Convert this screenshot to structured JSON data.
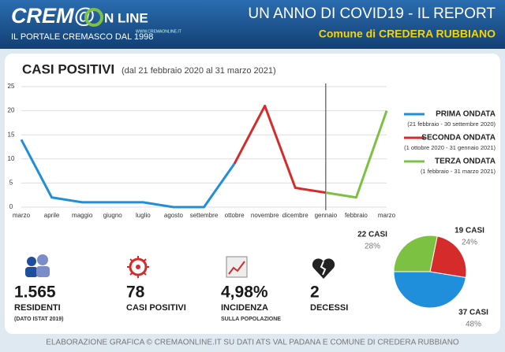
{
  "header": {
    "logo_main": "CREM@",
    "logo_tail": "N LINE",
    "tagline": "IL PORTALE CREMASCO DAL 1998",
    "url": "WWW.CREMAONLINE.IT",
    "title": "UN ANNO DI COVID19 - IL  REPORT",
    "subtitle": "Comune di CREDERA RUBBIANO"
  },
  "chart_data": [
    {
      "type": "line",
      "title": "CASI POSITIVI",
      "subtitle": "(dal 21 febbraio 2020 al 31 marzo 2021)",
      "categories": [
        "marzo",
        "aprile",
        "maggio",
        "giugno",
        "luglio",
        "agosto",
        "settembre",
        "ottobre",
        "novembre",
        "dicembre",
        "gennaio",
        "febbraio",
        "marzo"
      ],
      "series": [
        {
          "name": "PRIMA ONDATA",
          "period": "(21 febbraio - 30 settembre 2020)",
          "color": "#1f8fdc",
          "values": [
            14,
            2,
            1,
            1,
            1,
            0,
            0,
            9,
            null,
            null,
            null,
            null,
            null
          ]
        },
        {
          "name": "SECONDA ONDATA",
          "period": "(1 ottobre 2020 - 31 gennaio 2021)",
          "color": "#d62b2b",
          "values": [
            null,
            null,
            null,
            null,
            null,
            null,
            null,
            9,
            21,
            4,
            3,
            null,
            null
          ]
        },
        {
          "name": "TERZA ONDATA",
          "period": "(1 febbraio - 31 marzo 2021)",
          "color": "#7cc142",
          "values": [
            null,
            null,
            null,
            null,
            null,
            null,
            null,
            null,
            null,
            null,
            3,
            2,
            20
          ]
        }
      ],
      "ylim": [
        0,
        25
      ],
      "yticks": [
        0,
        5,
        10,
        15,
        20,
        25
      ],
      "grid": true
    },
    {
      "type": "pie",
      "values": [
        37,
        19,
        22
      ],
      "value_labels": [
        "37 CASI",
        "19 CASI",
        "22 CASI"
      ],
      "percent_labels": [
        "48%",
        "24%",
        "28%"
      ],
      "colors": [
        "#1f8fdc",
        "#d62b2b",
        "#7cc142"
      ]
    }
  ],
  "stats": [
    {
      "value": "1.565",
      "label": "RESIDENTI",
      "note": "(DATO ISTAT 2019)"
    },
    {
      "value": "78",
      "label": "CASI POSITIVI"
    },
    {
      "value": "4,98%",
      "label": "INCIDENZA",
      "note": "SULLA POPOLAZIONE"
    },
    {
      "value": "2",
      "label": "DECESSI"
    }
  ],
  "footer": "ELABORAZIONE GRAFICA © CREMAONLINE.IT SU DATI ATS VAL PADANA E COMUNE DI CREDERA RUBBIANO"
}
